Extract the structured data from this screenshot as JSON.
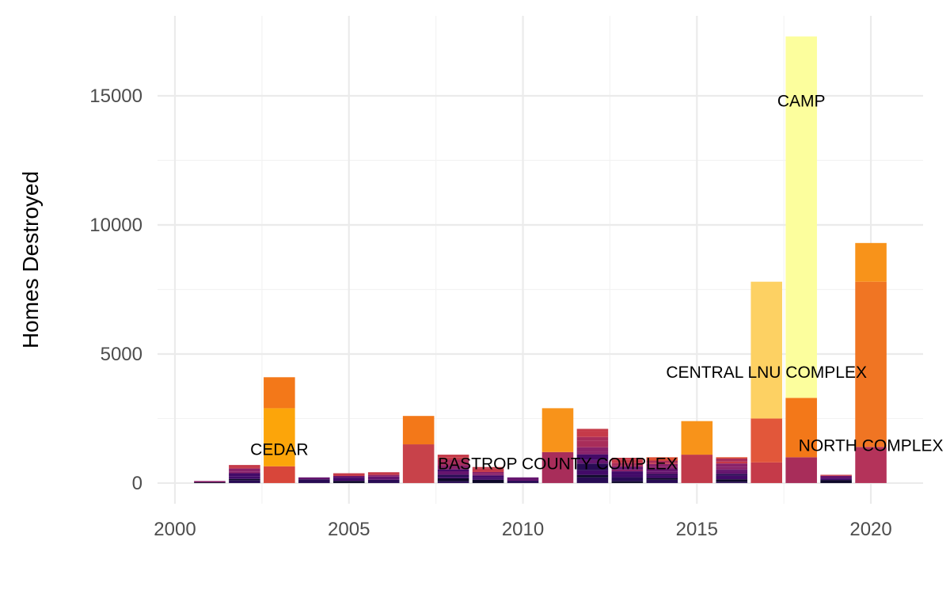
{
  "chart_data": {
    "type": "bar",
    "stacked": true,
    "title": "",
    "xlabel": "",
    "ylabel": "Homes Destroyed",
    "xlim": [
      1999.5,
      2021.5
    ],
    "ylim": [
      -800,
      18100
    ],
    "x_ticks": [
      2000,
      2005,
      2010,
      2015,
      2020
    ],
    "y_ticks": [
      0,
      5000,
      10000,
      15000
    ],
    "grid": true,
    "legend": "none",
    "years": [
      {
        "x": 2001,
        "total": 80
      },
      {
        "x": 2002,
        "total": 700
      },
      {
        "x": 2003,
        "total": 4100,
        "segments": [
          {
            "value": 650,
            "color": "#d8463a"
          },
          {
            "value": 2250,
            "color": "#fca50a",
            "label": "CEDAR"
          },
          {
            "value": 1200,
            "color": "#f37819"
          }
        ]
      },
      {
        "x": 2004,
        "total": 220
      },
      {
        "x": 2005,
        "total": 380
      },
      {
        "x": 2006,
        "total": 420
      },
      {
        "x": 2007,
        "total": 2600,
        "segments": [
          {
            "value": 1500,
            "color": "#c8424a"
          },
          {
            "value": 1100,
            "color": "#f37819"
          }
        ]
      },
      {
        "x": 2008,
        "total": 1100
      },
      {
        "x": 2009,
        "total": 620
      },
      {
        "x": 2010,
        "total": 220
      },
      {
        "x": 2011,
        "total": 2900,
        "segments": [
          {
            "value": 1200,
            "color": "#a82d5a"
          },
          {
            "value": 1700,
            "color": "#f8931a",
            "label": "BASTROP COUNTY COMPLEX"
          }
        ]
      },
      {
        "x": 2012,
        "total": 2100
      },
      {
        "x": 2013,
        "total": 980
      },
      {
        "x": 2014,
        "total": 1000
      },
      {
        "x": 2015,
        "total": 2400,
        "segments": [
          {
            "value": 1100,
            "color": "#c13a4a"
          },
          {
            "value": 1300,
            "color": "#f8931a"
          }
        ]
      },
      {
        "x": 2016,
        "total": 1000
      },
      {
        "x": 2017,
        "total": 7800,
        "segments": [
          {
            "value": 800,
            "color": "#c53a49"
          },
          {
            "value": 1700,
            "color": "#e2573a"
          },
          {
            "value": 5300,
            "color": "#fdd163",
            "label": "CENTRAL LNU COMPLEX"
          }
        ]
      },
      {
        "x": 2018,
        "total": 17300,
        "segments": [
          {
            "value": 1000,
            "color": "#a82d5a"
          },
          {
            "value": 2300,
            "color": "#f37819"
          },
          {
            "value": 14000,
            "color": "#fcfe9d",
            "label": "CAMP"
          }
        ]
      },
      {
        "x": 2019,
        "total": 320
      },
      {
        "x": 2020,
        "total": 9300,
        "segments": [
          {
            "value": 1400,
            "color": "#b4335a"
          },
          {
            "value": 6400,
            "color": "#f07523",
            "label": "NORTH COMPLEX"
          },
          {
            "value": 1500,
            "color": "#f8931a"
          }
        ]
      }
    ],
    "annotations": [
      {
        "text": "CEDAR",
        "x": 2003,
        "y": 1300
      },
      {
        "text": "BASTROP COUNTY COMPLEX",
        "x": 2011,
        "y": 750
      },
      {
        "text": "CENTRAL LNU COMPLEX",
        "x": 2017,
        "y": 4300
      },
      {
        "text": "CAMP",
        "x": 2018,
        "y": 14800
      },
      {
        "text": "NORTH COMPLEX",
        "x": 2020,
        "y": 1450
      }
    ],
    "palette": [
      "#0d0829",
      "#280b54",
      "#420a68",
      "#65156e",
      "#89226a",
      "#a82d5a",
      "#c53a49",
      "#de4f33",
      "#f06f20",
      "#fb9b06",
      "#fcc229",
      "#f6e565",
      "#fcfe9d"
    ]
  }
}
